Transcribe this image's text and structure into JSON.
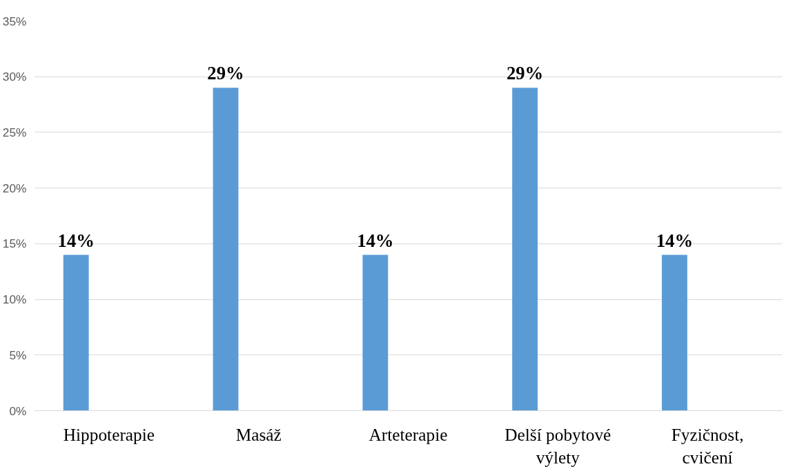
{
  "chart_data": {
    "type": "bar",
    "categories": [
      "Hippoterapie",
      "Masáž",
      "Arteterapie",
      "Delší pobytové výlety",
      "Fyzičnost, cvičení"
    ],
    "values": [
      14,
      29,
      14,
      29,
      14
    ],
    "value_labels": [
      "14%",
      "29%",
      "14%",
      "29%",
      "14%"
    ],
    "color": "#5b9bd5",
    "ylim": [
      0,
      35
    ],
    "yticks": [
      {
        "value": 0,
        "label": "0%"
      },
      {
        "value": 5,
        "label": "5%"
      },
      {
        "value": 10,
        "label": "10%"
      },
      {
        "value": 15,
        "label": "15%"
      },
      {
        "value": 20,
        "label": "20%"
      },
      {
        "value": 25,
        "label": "25%"
      },
      {
        "value": 30,
        "label": "30%"
      },
      {
        "value": 35,
        "label": "35%"
      }
    ],
    "grid": "y"
  }
}
